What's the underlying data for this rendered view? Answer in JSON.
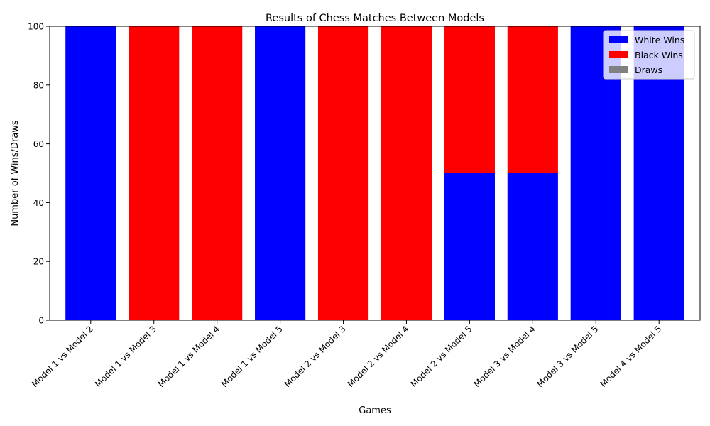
{
  "chart_data": {
    "type": "bar",
    "stacked": true,
    "title": "Results of Chess Matches Between Models",
    "xlabel": "Games",
    "ylabel": "Number of Wins/Draws",
    "ylim": [
      0,
      100
    ],
    "yticks": [
      0,
      20,
      40,
      60,
      80,
      100
    ],
    "grid": false,
    "legend_position": "top-right",
    "categories": [
      "Model 1 vs Model 2",
      "Model 1 vs Model 3",
      "Model 1 vs Model 4",
      "Model 1 vs Model 5",
      "Model 2 vs Model 3",
      "Model 2 vs Model 4",
      "Model 2 vs Model 5",
      "Model 3 vs Model 4",
      "Model 3 vs Model 5",
      "Model 4 vs Model 5"
    ],
    "series": [
      {
        "name": "White Wins",
        "color": "#0000ff",
        "values": [
          100,
          0,
          0,
          100,
          0,
          0,
          50,
          50,
          100,
          100
        ]
      },
      {
        "name": "Black Wins",
        "color": "#ff0000",
        "values": [
          0,
          100,
          100,
          0,
          100,
          100,
          50,
          50,
          0,
          0
        ]
      },
      {
        "name": "Draws",
        "color": "#808080",
        "values": [
          0,
          0,
          0,
          0,
          0,
          0,
          0,
          0,
          0,
          0
        ]
      }
    ]
  }
}
